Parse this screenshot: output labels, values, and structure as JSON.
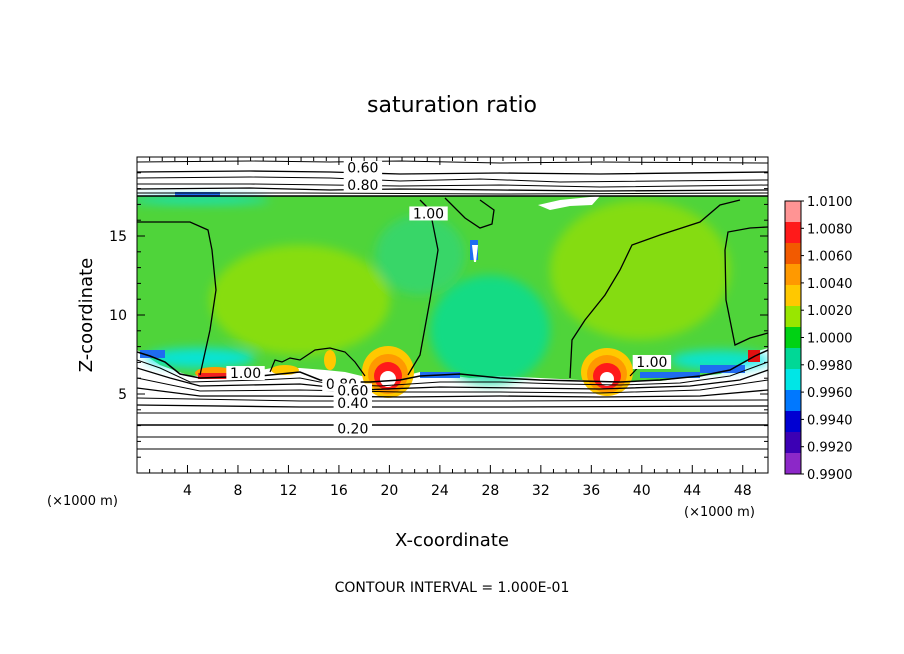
{
  "chart_data": {
    "type": "heatmap",
    "title": "saturation ratio",
    "xlabel": "X-coordinate",
    "ylabel": "Z-coordinate",
    "x_unit": "(×1000 m)",
    "xlim": [
      0,
      50
    ],
    "ylim": [
      0,
      20
    ],
    "x_ticks": [
      "4",
      "8",
      "12",
      "16",
      "20",
      "24",
      "28",
      "32",
      "36",
      "40",
      "44",
      "48"
    ],
    "y_ticks": [
      "5",
      "10",
      "15"
    ],
    "colorbar": {
      "levels": [
        "1.0100",
        "1.0080",
        "1.0060",
        "1.0040",
        "1.0020",
        "1.0000",
        "0.9980",
        "0.9960",
        "0.9940",
        "0.9920",
        "0.9900"
      ],
      "colors": [
        "#ff9494",
        "#ff1a1a",
        "#f25a00",
        "#ff9900",
        "#ffc800",
        "#99e600",
        "#00d214",
        "#00d896",
        "#00e6e6",
        "#0078ff",
        "#0000d2",
        "#3c00b4",
        "#8c28c8"
      ],
      "min": 0.99,
      "max": 1.01
    },
    "contour_labels": [
      {
        "text": "0.60",
        "x": 17.9,
        "z": 19.2
      },
      {
        "text": "0.80",
        "x": 17.9,
        "z": 18.1
      },
      {
        "text": "1.00",
        "x": 23.1,
        "z": 16.3
      },
      {
        "text": "1.00",
        "x": 8.6,
        "z": 6.2
      },
      {
        "text": "1.00",
        "x": 40.8,
        "z": 6.9
      },
      {
        "text": "0.80",
        "x": 16.2,
        "z": 5.5
      },
      {
        "text": "0.60",
        "x": 17.1,
        "z": 5.1
      },
      {
        "text": "0.40",
        "x": 17.1,
        "z": 4.3
      },
      {
        "text": "0.20",
        "x": 17.1,
        "z": 2.7
      }
    ],
    "contour_interval_text": "CONTOUR INTERVAL = 1.000E-01"
  }
}
